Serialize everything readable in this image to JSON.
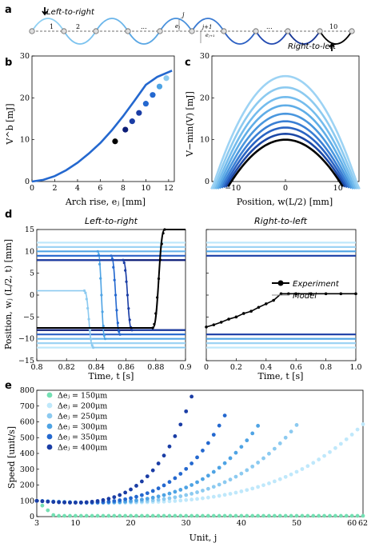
{
  "colors": {
    "c1": "#74e0b3",
    "c2": "#bfe8fb",
    "c3": "#8ccaf0",
    "c4": "#4ea3e4",
    "c5": "#2468cf",
    "c6": "#1a3da5",
    "c7": "#0c1d77",
    "black": "#000000"
  },
  "panel_a": {
    "label": "a",
    "left_to_right": "Left-to-right",
    "right_to_left": "Right-to-left",
    "unit_1": "1",
    "unit_2": "2",
    "dots1": "...",
    "unit_j": "j",
    "unit_j1": "j+1",
    "dots2": "...",
    "unit_10": "10",
    "ej": "eⱼ",
    "ej1": "eⱼ₊₁"
  },
  "chart_data": [
    {
      "id": "b",
      "type": "line",
      "panel_label": "b",
      "xlabel": "Arch rise, eⱼ [mm]",
      "ylabel": "V^b [mJ]",
      "xlim": [
        0,
        12.5
      ],
      "ylim": [
        0,
        30
      ],
      "xticks": [
        "0",
        "2",
        "4",
        "6",
        "8",
        "10",
        "12"
      ],
      "yticks": [
        "0",
        "10",
        "20",
        "30"
      ],
      "series": [
        {
          "values_x": [
            0,
            1,
            2,
            3,
            4,
            5,
            6,
            7,
            8,
            9,
            10,
            11,
            12.3
          ],
          "values_y": [
            0,
            0.4,
            1.3,
            2.7,
            4.5,
            6.7,
            9.2,
            12.2,
            15.6,
            19.3,
            23.1,
            25.0,
            26.5
          ]
        }
      ],
      "markers": [
        {
          "x": 7.3,
          "y": 9.6
        },
        {
          "x": 8.2,
          "y": 12.4
        },
        {
          "x": 8.8,
          "y": 14.4
        },
        {
          "x": 9.4,
          "y": 16.4
        },
        {
          "x": 10.0,
          "y": 18.6
        },
        {
          "x": 10.6,
          "y": 20.7
        },
        {
          "x": 11.2,
          "y": 22.7
        },
        {
          "x": 11.8,
          "y": 24.7
        }
      ]
    },
    {
      "id": "c",
      "type": "line",
      "panel_label": "c",
      "xlabel": "Position, w(L/2) [mm]",
      "ylabel": "V−min(V) [mJ]",
      "xlim": [
        -14,
        14
      ],
      "ylim": [
        0,
        30
      ],
      "xticks": [
        "−10",
        "0",
        "10"
      ],
      "yticks": [
        "0",
        "10",
        "20",
        "30"
      ],
      "peaks": [
        25.2,
        22.5,
        20.2,
        18.2,
        16.2,
        14.4,
        12.9,
        11.4,
        10.0
      ],
      "half_widths": [
        13.5,
        13.1,
        12.7,
        12.3,
        11.9,
        11.5,
        11.1,
        10.7,
        10.3
      ]
    },
    {
      "id": "d_left",
      "type": "line",
      "panel_label": "d",
      "title": "Left-to-right",
      "xlabel": "Time, t [s]",
      "ylabel": "Position, wⱼ (L/2, t) [mm]",
      "xlim": [
        0.8,
        0.9
      ],
      "ylim": [
        -15,
        15
      ],
      "xticks": [
        "0.8",
        "0.82",
        "0.84",
        "0.86",
        "0.88",
        "0.9"
      ],
      "yticks": [
        "−15",
        "−10",
        "−5",
        "0",
        "5",
        "10",
        "15"
      ],
      "levels": [
        12.0,
        11.0,
        10.0,
        9.0,
        8.0,
        -8.0,
        -9.0,
        -10.0,
        -11.0,
        -12.0
      ],
      "transitions": [
        {
          "t0": 0.832,
          "t1": 0.838,
          "from": 1.0,
          "to": -12.0
        },
        {
          "t0": 0.841,
          "t1": 0.846,
          "from": 10.0,
          "to": -10.0
        },
        {
          "t0": 0.85,
          "t1": 0.856,
          "from": 9.0,
          "to": -9.0
        },
        {
          "t0": 0.858,
          "t1": 0.864,
          "from": 8.0,
          "to": -8.0
        },
        {
          "t0": 0.878,
          "t1": 0.886,
          "from": -7.5,
          "to": 15.0
        }
      ]
    },
    {
      "id": "d_right",
      "type": "line",
      "title": "Right-to-left",
      "xlabel": "Time, t [s]",
      "xlim": [
        0,
        1.0
      ],
      "ylim": [
        -15,
        15
      ],
      "xticks": [
        "0",
        "0.2",
        "0.4",
        "0.6",
        "0.8",
        "1.0"
      ],
      "legend": [
        "Experiment",
        "Model"
      ],
      "levels": [
        12.0,
        11.0,
        10.0,
        9.0,
        -9.0,
        -10.0,
        -11.0,
        -12.0
      ],
      "experiment_x": [
        0,
        0.05,
        0.1,
        0.15,
        0.2,
        0.25,
        0.3,
        0.35,
        0.4,
        0.45,
        0.5,
        0.55,
        0.6,
        0.7,
        0.8,
        0.9,
        1.0
      ],
      "experiment_y": [
        -7.3,
        -6.8,
        -6.2,
        -5.5,
        -5.0,
        -4.2,
        -3.7,
        -2.8,
        -2.0,
        -1.2,
        0.3,
        0.3,
        0.3,
        0.3,
        0.3,
        0.3,
        0.3
      ]
    },
    {
      "id": "e",
      "type": "scatter",
      "panel_label": "e",
      "xlabel": "Unit, j",
      "ylabel": "Speed [unit/s]",
      "xlim": [
        3,
        62
      ],
      "ylim": [
        0,
        800
      ],
      "xticks": [
        "3",
        "10",
        "20",
        "30",
        "40",
        "50",
        "60",
        "62"
      ],
      "yticks": [
        "0",
        "100",
        "200",
        "300",
        "400",
        "500",
        "600",
        "700",
        "800"
      ],
      "series": [
        {
          "name": "Δeⱼ = 150μm",
          "end": 62,
          "end_speed": 5
        },
        {
          "name": "Δeⱼ = 200μm",
          "end": 62,
          "end_speed": 585
        },
        {
          "name": "Δeⱼ = 250μm",
          "end": 50,
          "end_speed": 580
        },
        {
          "name": "Δeⱼ = 300μm",
          "end": 43,
          "end_speed": 575
        },
        {
          "name": "Δeⱼ = 350μm",
          "end": 37,
          "end_speed": 640
        },
        {
          "name": "Δeⱼ = 400μm",
          "end": 31,
          "end_speed": 760
        }
      ]
    }
  ]
}
